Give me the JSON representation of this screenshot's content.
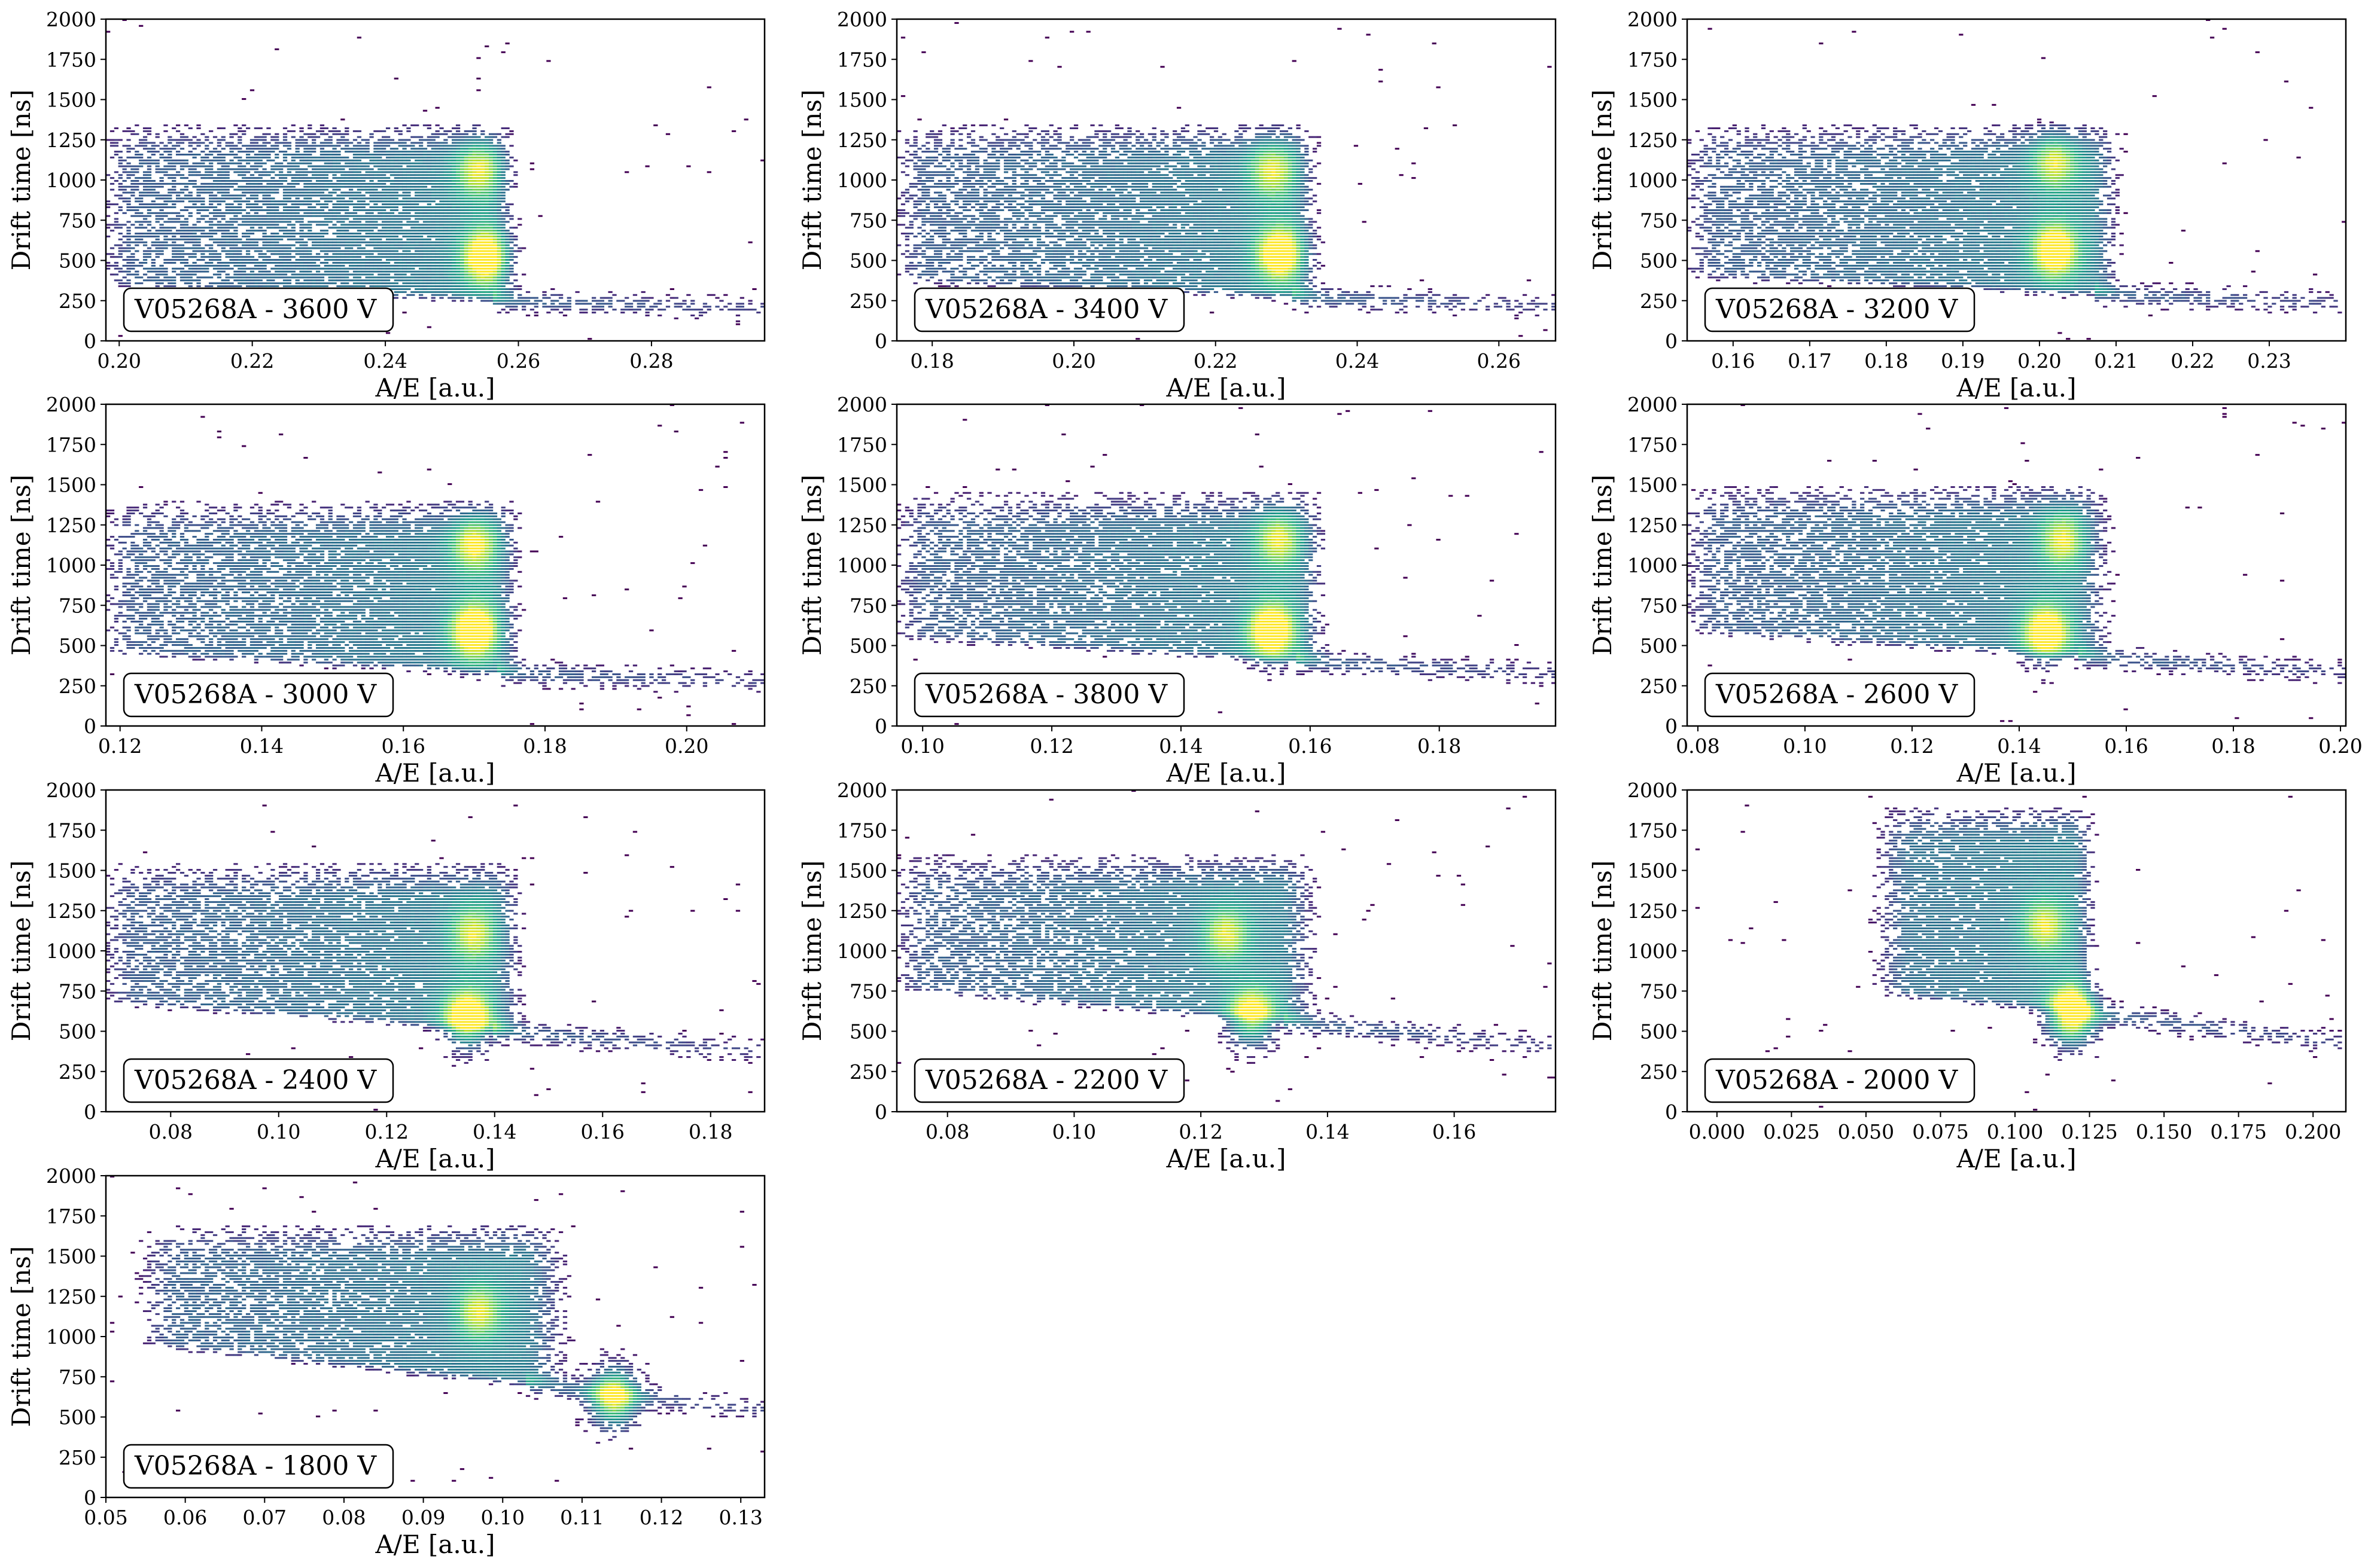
{
  "figure": {
    "background": "#ffffff"
  },
  "style": {
    "colormap": "viridis",
    "colors": {
      "low": "#440154",
      "mid_low": "#3b528b",
      "mid": "#21918c",
      "mid_high": "#5ec962",
      "high": "#fde725",
      "axis": "#000000",
      "label_border": "#000000"
    },
    "log_color_scale": true
  },
  "chart_data": [
    {
      "type": "heatmap",
      "label": "V05268A - 3600 V",
      "xlabel": "A/E [a.u.]",
      "ylabel": "Drift time [ns]",
      "xlim": [
        0.198,
        0.297
      ],
      "ylim": [
        0,
        2000
      ],
      "xticks": [
        0.2,
        0.22,
        0.24,
        0.26,
        0.28
      ],
      "xtick_labels": [
        "0.20",
        "0.22",
        "0.24",
        "0.26",
        "0.28"
      ],
      "yticks": [
        0,
        250,
        500,
        750,
        1000,
        1250,
        1500,
        1750,
        2000
      ],
      "ytick_labels": [
        "0",
        "250",
        "500",
        "750",
        "1000",
        "1250",
        "1500",
        "1750",
        "2000"
      ],
      "band": {
        "x_start": 0.198,
        "edge": 0.256,
        "edge_width": 0.004,
        "floor": 250,
        "top": 1350,
        "tail_x_end": 0.297,
        "tail_y_end": 195
      },
      "clusters": [
        {
          "x": 0.254,
          "y": 1050,
          "intensity": 0.45
        },
        {
          "x": 0.255,
          "y": 520,
          "intensity": 0.7
        }
      ]
    },
    {
      "type": "heatmap",
      "label": "V05268A - 3400 V",
      "xlabel": "A/E [a.u.]",
      "ylabel": "Drift time [ns]",
      "xlim": [
        0.175,
        0.268
      ],
      "ylim": [
        0,
        2000
      ],
      "xticks": [
        0.18,
        0.2,
        0.22,
        0.24,
        0.26
      ],
      "xtick_labels": [
        "0.18",
        "0.20",
        "0.22",
        "0.24",
        "0.26"
      ],
      "yticks": [
        0,
        250,
        500,
        750,
        1000,
        1250,
        1500,
        1750,
        2000
      ],
      "ytick_labels": [
        "0",
        "250",
        "500",
        "750",
        "1000",
        "1250",
        "1500",
        "1750",
        "2000"
      ],
      "band": {
        "x_start": 0.175,
        "edge": 0.231,
        "edge_width": 0.004,
        "floor": 270,
        "top": 1350,
        "tail_x_end": 0.268,
        "tail_y_end": 210
      },
      "clusters": [
        {
          "x": 0.228,
          "y": 1050,
          "intensity": 0.45
        },
        {
          "x": 0.229,
          "y": 540,
          "intensity": 0.7
        }
      ]
    },
    {
      "type": "heatmap",
      "label": "V05268A - 3200 V",
      "xlabel": "A/E [a.u.]",
      "ylabel": "Drift time [ns]",
      "xlim": [
        0.154,
        0.24
      ],
      "ylim": [
        0,
        2000
      ],
      "xticks": [
        0.16,
        0.17,
        0.18,
        0.19,
        0.2,
        0.21,
        0.22,
        0.23
      ],
      "xtick_labels": [
        "0.16",
        "0.17",
        "0.18",
        "0.19",
        "0.20",
        "0.21",
        "0.22",
        "0.23"
      ],
      "yticks": [
        0,
        250,
        500,
        750,
        1000,
        1250,
        1500,
        1750,
        2000
      ],
      "ytick_labels": [
        "0",
        "250",
        "500",
        "750",
        "1000",
        "1250",
        "1500",
        "1750",
        "2000"
      ],
      "band": {
        "x_start": 0.154,
        "edge": 0.207,
        "edge_width": 0.004,
        "floor": 290,
        "top": 1350,
        "tail_x_end": 0.24,
        "tail_y_end": 230
      },
      "clusters": [
        {
          "x": 0.202,
          "y": 1100,
          "intensity": 0.45
        },
        {
          "x": 0.202,
          "y": 560,
          "intensity": 0.7
        }
      ]
    },
    {
      "type": "heatmap",
      "label": "V05268A - 3000 V",
      "xlabel": "A/E [a.u.]",
      "ylabel": "Drift time [ns]",
      "xlim": [
        0.118,
        0.211
      ],
      "ylim": [
        0,
        2000
      ],
      "xticks": [
        0.12,
        0.14,
        0.16,
        0.18,
        0.2
      ],
      "xtick_labels": [
        "0.12",
        "0.14",
        "0.16",
        "0.18",
        "0.20"
      ],
      "yticks": [
        0,
        250,
        500,
        750,
        1000,
        1250,
        1500,
        1750,
        2000
      ],
      "ytick_labels": [
        "0",
        "250",
        "500",
        "750",
        "1000",
        "1250",
        "1500",
        "1750",
        "2000"
      ],
      "band": {
        "x_start": 0.118,
        "edge": 0.173,
        "edge_width": 0.004,
        "floor": 330,
        "top": 1400,
        "tail_x_end": 0.211,
        "tail_y_end": 270
      },
      "clusters": [
        {
          "x": 0.17,
          "y": 1120,
          "intensity": 0.5
        },
        {
          "x": 0.17,
          "y": 590,
          "intensity": 0.75
        }
      ]
    },
    {
      "type": "heatmap",
      "label": "V05268A - 3800 V",
      "xlabel": "A/E [a.u.]",
      "ylabel": "Drift time [ns]",
      "xlim": [
        0.096,
        0.198
      ],
      "ylim": [
        0,
        2000
      ],
      "xticks": [
        0.1,
        0.12,
        0.14,
        0.16,
        0.18
      ],
      "xtick_labels": [
        "0.10",
        "0.12",
        "0.14",
        "0.16",
        "0.18"
      ],
      "yticks": [
        0,
        250,
        500,
        750,
        1000,
        1250,
        1500,
        1750,
        2000
      ],
      "ytick_labels": [
        "0",
        "250",
        "500",
        "750",
        "1000",
        "1250",
        "1500",
        "1750",
        "2000"
      ],
      "band": {
        "x_start": 0.096,
        "edge": 0.158,
        "edge_width": 0.005,
        "floor": 400,
        "top": 1450,
        "tail_x_end": 0.198,
        "tail_y_end": 320
      },
      "clusters": [
        {
          "x": 0.155,
          "y": 1150,
          "intensity": 0.45
        },
        {
          "x": 0.154,
          "y": 590,
          "intensity": 0.75
        }
      ]
    },
    {
      "type": "heatmap",
      "label": "V05268A - 2600 V",
      "xlabel": "A/E [a.u.]",
      "ylabel": "Drift time [ns]",
      "xlim": [
        0.078,
        0.201
      ],
      "ylim": [
        0,
        2000
      ],
      "xticks": [
        0.08,
        0.1,
        0.12,
        0.14,
        0.16,
        0.18,
        0.2
      ],
      "xtick_labels": [
        "0.08",
        "0.10",
        "0.12",
        "0.14",
        "0.16",
        "0.18",
        "0.20"
      ],
      "yticks": [
        0,
        250,
        500,
        750,
        1000,
        1250,
        1500,
        1750,
        2000
      ],
      "ytick_labels": [
        "0",
        "250",
        "500",
        "750",
        "1000",
        "1250",
        "1500",
        "1750",
        "2000"
      ],
      "band": {
        "x_start": 0.078,
        "edge": 0.151,
        "edge_width": 0.007,
        "floor": 430,
        "top": 1500,
        "tail_x_end": 0.201,
        "tail_y_end": 330
      },
      "clusters": [
        {
          "x": 0.148,
          "y": 1150,
          "intensity": 0.45
        },
        {
          "x": 0.145,
          "y": 580,
          "intensity": 0.7
        }
      ]
    },
    {
      "type": "heatmap",
      "label": "V05268A - 2400 V",
      "xlabel": "A/E [a.u.]",
      "ylabel": "Drift time [ns]",
      "xlim": [
        0.068,
        0.19
      ],
      "ylim": [
        0,
        2000
      ],
      "xticks": [
        0.08,
        0.1,
        0.12,
        0.14,
        0.16,
        0.18
      ],
      "xtick_labels": [
        "0.08",
        "0.10",
        "0.12",
        "0.14",
        "0.16",
        "0.18"
      ],
      "yticks": [
        0,
        250,
        500,
        750,
        1000,
        1250,
        1500,
        1750,
        2000
      ],
      "ytick_labels": [
        "0",
        "250",
        "500",
        "750",
        "1000",
        "1250",
        "1500",
        "1750",
        "2000"
      ],
      "band": {
        "x_start": 0.068,
        "edge": 0.14,
        "edge_width": 0.006,
        "floor": 500,
        "top": 1550,
        "tail_x_end": 0.19,
        "tail_y_end": 370
      },
      "clusters": [
        {
          "x": 0.136,
          "y": 1100,
          "intensity": 0.45
        },
        {
          "x": 0.135,
          "y": 580,
          "intensity": 0.75
        }
      ]
    },
    {
      "type": "heatmap",
      "label": "V05268A - 2200 V",
      "xlabel": "A/E [a.u.]",
      "ylabel": "Drift time [ns]",
      "xlim": [
        0.072,
        0.176
      ],
      "ylim": [
        0,
        2000
      ],
      "xticks": [
        0.08,
        0.1,
        0.12,
        0.14,
        0.16
      ],
      "xtick_labels": [
        "0.08",
        "0.10",
        "0.12",
        "0.14",
        "0.16"
      ],
      "yticks": [
        0,
        250,
        500,
        750,
        1000,
        1250,
        1500,
        1750,
        2000
      ],
      "ytick_labels": [
        "0",
        "250",
        "500",
        "750",
        "1000",
        "1250",
        "1500",
        "1750",
        "2000"
      ],
      "band": {
        "x_start": 0.072,
        "edge": 0.133,
        "edge_width": 0.006,
        "floor": 560,
        "top": 1600,
        "tail_x_end": 0.176,
        "tail_y_end": 400
      },
      "clusters": [
        {
          "x": 0.124,
          "y": 1100,
          "intensity": 0.45
        },
        {
          "x": 0.128,
          "y": 590,
          "intensity": 0.65
        }
      ]
    },
    {
      "type": "heatmap",
      "label": "V05268A - 2000 V",
      "xlabel": "A/E [a.u.]",
      "ylabel": "Drift time [ns]",
      "xlim": [
        -0.01,
        0.211
      ],
      "ylim": [
        0,
        2000
      ],
      "xticks": [
        0.0,
        0.025,
        0.05,
        0.075,
        0.1,
        0.125,
        0.15,
        0.175,
        0.2
      ],
      "xtick_labels": [
        "0.000",
        "0.025",
        "0.050",
        "0.075",
        "0.100",
        "0.125",
        "0.150",
        "0.175",
        "0.200"
      ],
      "yticks": [
        0,
        250,
        500,
        750,
        1000,
        1250,
        1500,
        1750,
        2000
      ],
      "ytick_labels": [
        "0",
        "250",
        "500",
        "750",
        "1000",
        "1250",
        "1500",
        "1750",
        "2000"
      ],
      "band": {
        "x_start": 0.055,
        "edge": 0.12,
        "edge_width": 0.008,
        "floor": 620,
        "top": 1900,
        "tail_x_end": 0.211,
        "tail_y_end": 420
      },
      "clusters": [
        {
          "x": 0.11,
          "y": 1150,
          "intensity": 0.45
        },
        {
          "x": 0.119,
          "y": 600,
          "intensity": 0.9
        }
      ]
    },
    {
      "type": "heatmap",
      "label": "V05268A - 1800 V",
      "xlabel": "A/E [a.u.]",
      "ylabel": "Drift time [ns]",
      "xlim": [
        0.05,
        0.133
      ],
      "ylim": [
        0,
        2000
      ],
      "xticks": [
        0.05,
        0.06,
        0.07,
        0.08,
        0.09,
        0.1,
        0.11,
        0.12,
        0.13
      ],
      "xtick_labels": [
        "0.05",
        "0.06",
        "0.07",
        "0.08",
        "0.09",
        "0.10",
        "0.11",
        "0.12",
        "0.13"
      ],
      "yticks": [
        0,
        250,
        500,
        750,
        1000,
        1250,
        1500,
        1750,
        2000
      ],
      "ytick_labels": [
        "0",
        "250",
        "500",
        "750",
        "1000",
        "1250",
        "1500",
        "1750",
        "2000"
      ],
      "band": {
        "x_start": 0.055,
        "edge": 0.103,
        "edge_width": 0.006,
        "floor": 700,
        "top": 1700,
        "tail_x_end": 0.133,
        "tail_y_end": 540
      },
      "clusters": [
        {
          "x": 0.097,
          "y": 1150,
          "intensity": 0.45
        },
        {
          "x": 0.114,
          "y": 620,
          "intensity": 0.75
        }
      ]
    }
  ]
}
